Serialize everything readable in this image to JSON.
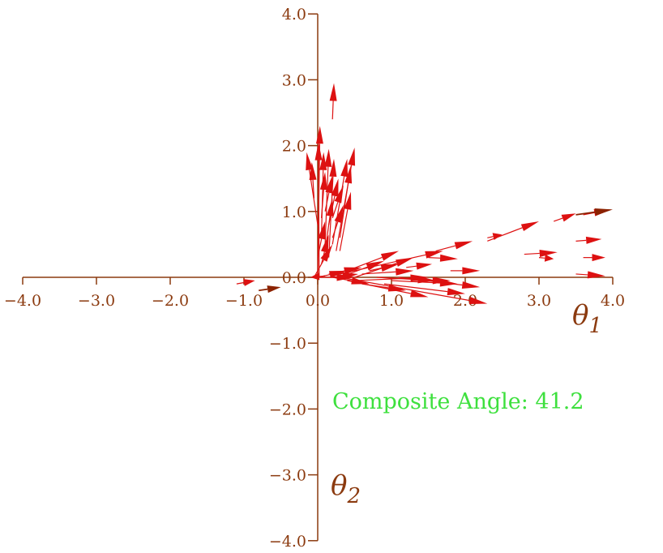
{
  "chart_data": {
    "type": "scatter",
    "subtype": "vector-field",
    "xlabel": "θ",
    "xlabel_sub": "1",
    "ylabel": "θ",
    "ylabel_sub": "2",
    "xlim": [
      -4.0,
      4.0
    ],
    "ylim": [
      -4.0,
      4.0
    ],
    "xticks": [
      "−4.0",
      "−3.0",
      "−2.0",
      "−1.0",
      "0.0",
      "1.0",
      "2.0",
      "3.0",
      "4.0"
    ],
    "xtick_values": [
      -4,
      -3,
      -2,
      -1,
      0,
      1,
      2,
      3,
      4
    ],
    "yticks": [
      "4.0",
      "3.0",
      "2.0",
      "1.0",
      "0.0",
      "−1.0",
      "−2.0",
      "−3.0",
      "−4.0"
    ],
    "ytick_values": [
      4,
      3,
      2,
      1,
      0,
      -1,
      -2,
      -3,
      -4
    ],
    "grid": false,
    "annotation": "Composite Angle: 41.2",
    "colors": {
      "axis": "#8b3a0f",
      "arrow": "#dd1111",
      "composite_arrow": "#8b2200",
      "annotation": "#3ee03e"
    },
    "vectors": [
      {
        "x0": 0.0,
        "y0": 0.0,
        "x1": 0.03,
        "y1": 2.3
      },
      {
        "x0": 0.02,
        "y0": 0.0,
        "x1": 0.01,
        "y1": 2.05
      },
      {
        "x0": 0.0,
        "y0": 0.8,
        "x1": -0.15,
        "y1": 1.9
      },
      {
        "x0": -0.05,
        "y0": 1.2,
        "x1": -0.08,
        "y1": 1.75
      },
      {
        "x0": 0.05,
        "y0": 0.6,
        "x1": 0.08,
        "y1": 1.9
      },
      {
        "x0": 0.1,
        "y0": 0.5,
        "x1": 0.15,
        "y1": 1.95
      },
      {
        "x0": 0.15,
        "y0": 0.3,
        "x1": 0.22,
        "y1": 1.8
      },
      {
        "x0": 0.05,
        "y0": 0.9,
        "x1": 0.1,
        "y1": 1.6
      },
      {
        "x0": 0.1,
        "y0": 1.0,
        "x1": 0.2,
        "y1": 1.55
      },
      {
        "x0": 0.15,
        "y0": 0.8,
        "x1": 0.28,
        "y1": 1.5
      },
      {
        "x0": 0.2,
        "y0": 0.5,
        "x1": 0.4,
        "y1": 1.8
      },
      {
        "x0": 0.25,
        "y0": 0.4,
        "x1": 0.5,
        "y1": 1.97
      },
      {
        "x0": 0.3,
        "y0": 0.6,
        "x1": 0.45,
        "y1": 1.7
      },
      {
        "x0": 0.2,
        "y0": 0.9,
        "x1": 0.35,
        "y1": 1.4
      },
      {
        "x0": 0.1,
        "y0": 0.4,
        "x1": 0.2,
        "y1": 1.2
      },
      {
        "x0": 0.2,
        "y0": 0.6,
        "x1": 0.35,
        "y1": 1.1
      },
      {
        "x0": 0.0,
        "y0": 0.3,
        "x1": 0.1,
        "y1": 0.85
      },
      {
        "x0": 0.05,
        "y0": 0.2,
        "x1": 0.15,
        "y1": 0.65
      },
      {
        "x0": 0.3,
        "y0": 0.4,
        "x1": 0.45,
        "y1": 1.3
      },
      {
        "x0": 0.2,
        "y0": 2.4,
        "x1": 0.22,
        "y1": 2.95
      },
      {
        "x0": -0.05,
        "y0": 0.0,
        "x1": 0.2,
        "y1": 0.5
      },
      {
        "x0": 1.6,
        "y0": 0.4,
        "x1": 2.1,
        "y1": 0.55
      },
      {
        "x0": 2.3,
        "y0": 0.55,
        "x1": 3.0,
        "y1": 0.85
      },
      {
        "x0": 2.3,
        "y0": 0.6,
        "x1": 2.5,
        "y1": 0.65
      },
      {
        "x0": 3.2,
        "y0": 0.85,
        "x1": 3.5,
        "y1": 0.97
      },
      {
        "x0": 3.6,
        "y0": 0.95,
        "x1": 3.98,
        "y1": 1.03
      },
      {
        "x0": 2.8,
        "y0": 0.35,
        "x1": 3.25,
        "y1": 0.38
      },
      {
        "x0": 3.5,
        "y0": 0.55,
        "x1": 3.85,
        "y1": 0.58
      },
      {
        "x0": 3.0,
        "y0": 0.3,
        "x1": 3.2,
        "y1": 0.28
      },
      {
        "x0": 3.6,
        "y0": 0.3,
        "x1": 3.9,
        "y1": 0.3
      },
      {
        "x0": 3.5,
        "y0": 0.05,
        "x1": 3.9,
        "y1": 0.02
      },
      {
        "x0": 1.5,
        "y0": 0.3,
        "x1": 1.9,
        "y1": 0.28
      },
      {
        "x0": 1.8,
        "y0": 0.1,
        "x1": 2.2,
        "y1": 0.1
      },
      {
        "x0": 0.3,
        "y0": 0.05,
        "x1": 1.7,
        "y1": 0.4
      },
      {
        "x0": 0.4,
        "y0": 0.1,
        "x1": 1.1,
        "y1": 0.4
      },
      {
        "x0": 0.5,
        "y0": 0.0,
        "x1": 1.3,
        "y1": 0.3
      },
      {
        "x0": 0.3,
        "y0": 0.0,
        "x1": 0.9,
        "y1": 0.25
      },
      {
        "x0": 0.6,
        "y0": 0.05,
        "x1": 1.3,
        "y1": 0.1
      },
      {
        "x0": 0.5,
        "y0": -0.05,
        "x1": 1.5,
        "y1": 0.0
      },
      {
        "x0": 0.8,
        "y0": 0.0,
        "x1": 1.6,
        "y1": -0.05
      },
      {
        "x0": 1.0,
        "y0": -0.05,
        "x1": 1.9,
        "y1": -0.1
      },
      {
        "x0": 1.1,
        "y0": 0.0,
        "x1": 2.2,
        "y1": -0.15
      },
      {
        "x0": 0.9,
        "y0": -0.1,
        "x1": 2.0,
        "y1": -0.25
      },
      {
        "x0": 0.4,
        "y0": -0.05,
        "x1": 1.5,
        "y1": -0.3
      },
      {
        "x0": 0.3,
        "y0": 0.0,
        "x1": 2.3,
        "y1": -0.4
      },
      {
        "x0": 0.6,
        "y0": -0.1,
        "x1": 1.2,
        "y1": -0.2
      },
      {
        "x0": 0.2,
        "y0": 0.0,
        "x1": 0.7,
        "y1": -0.1
      },
      {
        "x0": 0.15,
        "y0": 0.05,
        "x1": 0.6,
        "y1": 0.15
      },
      {
        "x0": 0.2,
        "y0": 0.0,
        "x1": 0.55,
        "y1": 0.05
      },
      {
        "x0": 0.7,
        "y0": 0.1,
        "x1": 1.1,
        "y1": 0.2
      },
      {
        "x0": 1.2,
        "y0": 0.15,
        "x1": 1.55,
        "y1": 0.2
      },
      {
        "x0": 1.3,
        "y0": -0.05,
        "x1": 1.8,
        "y1": -0.05
      },
      {
        "x0": 0.0,
        "y0": 0.0,
        "x1": 0.4,
        "y1": 0.1
      },
      {
        "x0": 0.0,
        "y0": 0.0,
        "x1": 0.5,
        "y1": 0.0
      },
      {
        "x0": -1.1,
        "y0": -0.1,
        "x1": -0.85,
        "y1": -0.05
      },
      {
        "x0": 0.1,
        "y0": 0.02,
        "x1": -0.1,
        "y1": 0.0,
        "composite": false
      }
    ],
    "composite_vectors": [
      {
        "x0": 3.5,
        "y0": 0.95,
        "x1": 4.0,
        "y1": 1.03
      },
      {
        "x0": -0.8,
        "y0": -0.2,
        "x1": -0.5,
        "y1": -0.15
      }
    ]
  }
}
